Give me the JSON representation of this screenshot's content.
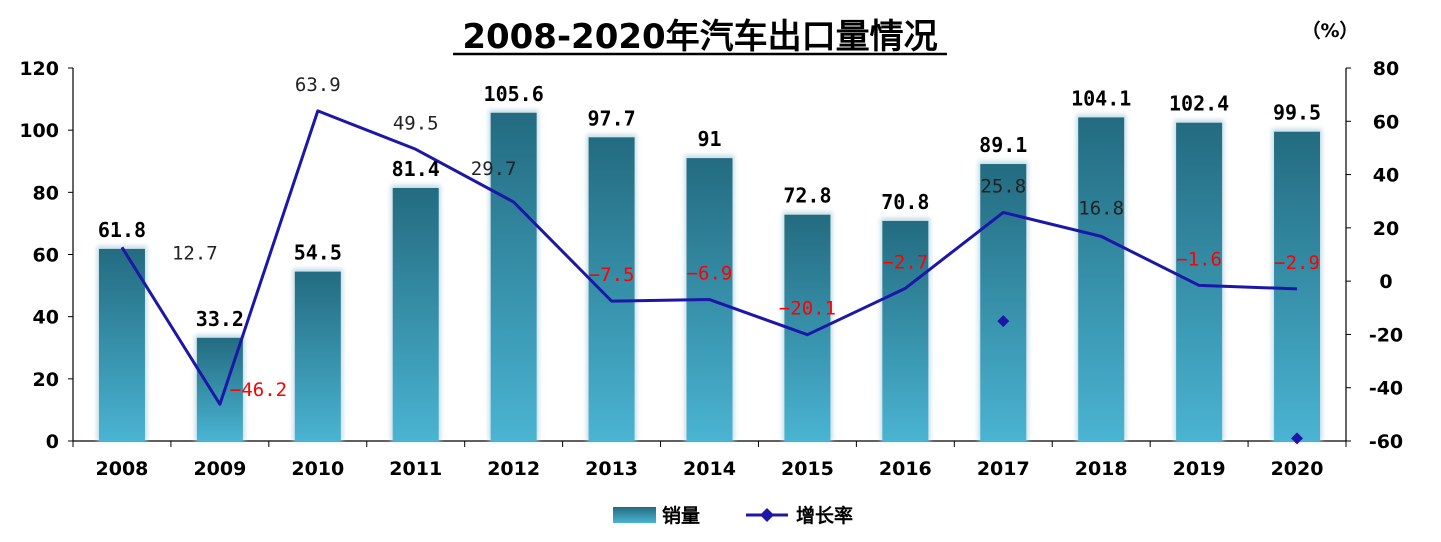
{
  "chart_data": {
    "type": "bar",
    "title": "2008-2020年汽车出口量情况",
    "unit_right": "（%）",
    "categories": [
      "2008",
      "2009",
      "2010",
      "2011",
      "2012",
      "2013",
      "2014",
      "2015",
      "2016",
      "2017",
      "2018",
      "2019",
      "2020"
    ],
    "series": [
      {
        "name": "销量",
        "type": "bar",
        "axis": "left",
        "values": [
          61.8,
          33.2,
          54.5,
          81.4,
          105.6,
          97.7,
          91,
          72.8,
          70.8,
          89.1,
          104.1,
          102.4,
          99.5
        ],
        "labels": [
          "61.8",
          "33.2",
          "54.5",
          "81.4",
          "105.6",
          "97.7",
          "91",
          "72.8",
          "70.8",
          "89.1",
          "104.1",
          "102.4",
          "99.5"
        ]
      },
      {
        "name": "增长率",
        "type": "line",
        "axis": "right",
        "values": [
          12.7,
          -46.2,
          63.9,
          49.5,
          29.7,
          -7.5,
          -6.9,
          -20.1,
          -2.7,
          25.8,
          16.8,
          -1.6,
          -2.9
        ],
        "labels": [
          "12.7",
          "−46.2",
          "63.9",
          "49.5",
          "29.7",
          "−7.5",
          "−6.9",
          "−20.1",
          "−2.7",
          "25.8",
          "16.8",
          "−1.6",
          "−2.9"
        ]
      }
    ],
    "y_left": {
      "min": 0,
      "max": 120,
      "ticks": [
        "0",
        "20",
        "40",
        "60",
        "80",
        "100",
        "120"
      ]
    },
    "y_right": {
      "min": -60,
      "max": 80,
      "ticks": [
        "-60",
        "-40",
        "-20",
        "0",
        "20",
        "40",
        "60",
        "80"
      ]
    },
    "stray_markers": [
      {
        "category": "2017",
        "value": -15
      },
      {
        "category": "2020",
        "value": -59
      }
    ],
    "legend": {
      "placement": "bottom"
    },
    "colors": {
      "bar_top": "#236b80",
      "bar_bottom": "#4ab4d2",
      "line": "#1c17a8",
      "negative_label": "#ff0000",
      "positive_label": "#222222"
    },
    "grid": false
  }
}
